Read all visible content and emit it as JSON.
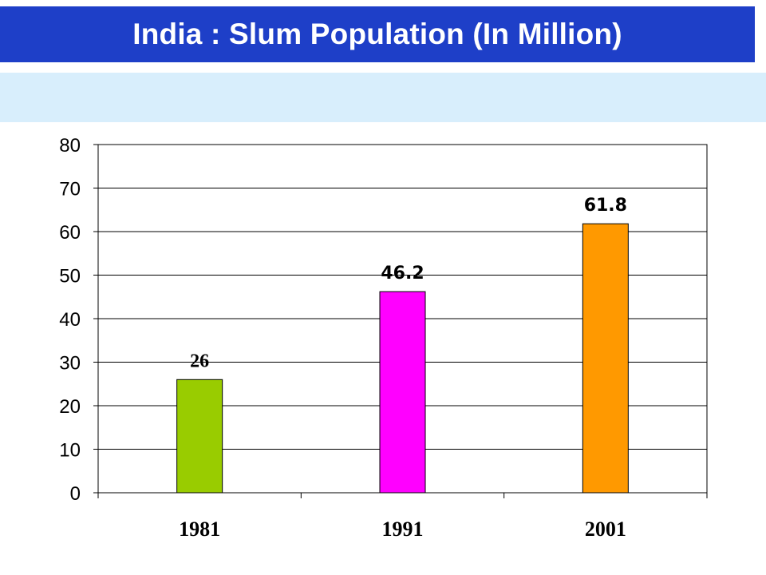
{
  "header": {
    "title": "India : Slum Population (In Million)",
    "title_bar_color": "#1e3fc8",
    "band_color": "#d8eefc"
  },
  "chart_data": {
    "type": "bar",
    "categories": [
      "1981",
      "1991",
      "2001"
    ],
    "values": [
      26,
      46.2,
      61.8
    ],
    "data_labels": [
      "26",
      "46.2",
      "61.8"
    ],
    "colors": [
      "#99cc00",
      "#ff00ff",
      "#ff9900"
    ],
    "title": "India : Slum Population (In Million)",
    "xlabel": "",
    "ylabel": "",
    "ylim": [
      0,
      80
    ],
    "yticks": [
      0,
      10,
      20,
      30,
      40,
      50,
      60,
      70,
      80
    ],
    "grid": true,
    "legend": "none"
  }
}
